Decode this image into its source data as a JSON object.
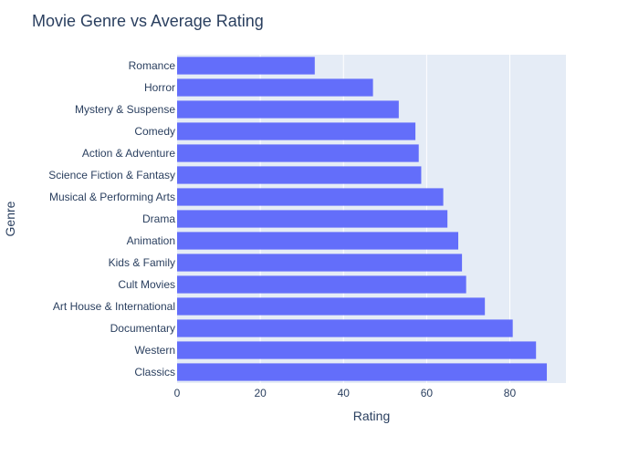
{
  "chart_data": {
    "type": "bar",
    "orientation": "horizontal",
    "title": "Movie Genre vs Average Rating",
    "xlabel": "Rating",
    "ylabel": "Genre",
    "xlim": [
      0,
      93.5
    ],
    "xticks": [
      0,
      20,
      40,
      60,
      80
    ],
    "grid": true,
    "colors": {
      "bar": "#636efa",
      "plot_bg": "#e5ecf6",
      "grid": "#ffffff",
      "text": "#2a3f5f"
    },
    "categories": [
      "Romance",
      "Horror",
      "Mystery & Suspense",
      "Comedy",
      "Action & Adventure",
      "Science Fiction & Fantasy",
      "Musical & Performing Arts",
      "Drama",
      "Animation",
      "Kids & Family",
      "Cult Movies",
      "Art House & International",
      "Documentary",
      "Western",
      "Classics"
    ],
    "values": [
      33.1,
      47.1,
      53.3,
      57.3,
      58.1,
      58.7,
      64.0,
      65.0,
      67.6,
      68.5,
      69.5,
      74.0,
      80.7,
      86.3,
      88.9
    ]
  }
}
